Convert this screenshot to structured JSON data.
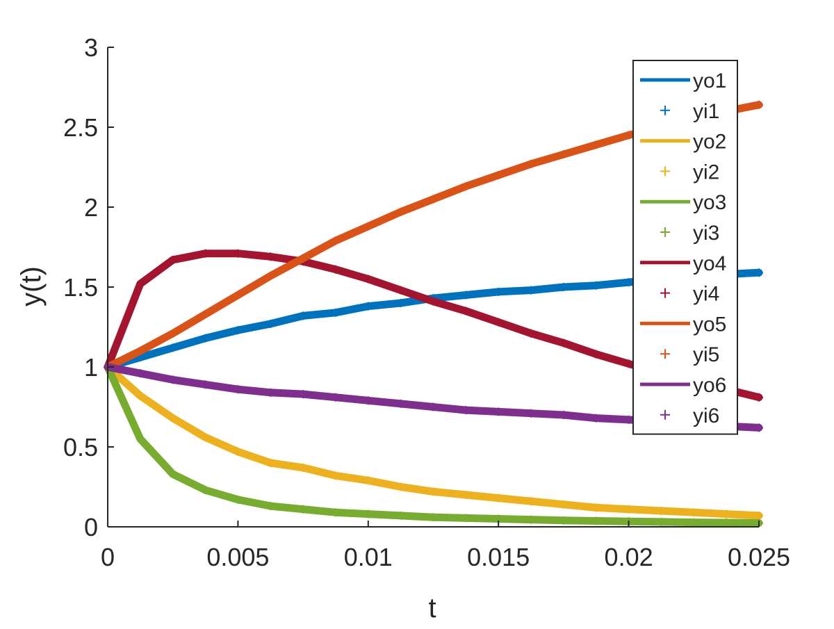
{
  "chart_data": {
    "type": "line",
    "title": "",
    "xlabel": "t",
    "ylabel": "y(t)",
    "xlim": [
      0,
      0.025
    ],
    "ylim": [
      0,
      3
    ],
    "xticks": [
      0,
      0.005,
      0.01,
      0.015,
      0.02,
      0.025
    ],
    "xtick_labels": [
      "0",
      "0.005",
      "0.01",
      "0.015",
      "0.02",
      "0.025"
    ],
    "yticks": [
      0,
      0.5,
      1,
      1.5,
      2,
      2.5,
      3
    ],
    "ytick_labels": [
      "0",
      "0.5",
      "1",
      "1.5",
      "2",
      "2.5",
      "3"
    ],
    "grid": false,
    "legend_position": "top-right",
    "x": [
      0,
      0.00125,
      0.0025,
      0.00375,
      0.005,
      0.00625,
      0.0075,
      0.00875,
      0.01,
      0.01125,
      0.0125,
      0.01375,
      0.015,
      0.01625,
      0.0175,
      0.01875,
      0.02,
      0.02125,
      0.0225,
      0.02375,
      0.025
    ],
    "series": [
      {
        "name": "yo1",
        "style": "line",
        "color": "#0072BD",
        "values": [
          1.0,
          1.06,
          1.12,
          1.18,
          1.23,
          1.27,
          1.32,
          1.34,
          1.38,
          1.4,
          1.43,
          1.45,
          1.47,
          1.48,
          1.5,
          1.51,
          1.53,
          1.55,
          1.56,
          1.58,
          1.59
        ]
      },
      {
        "name": "yi1",
        "style": "marker",
        "color": "#0072BD",
        "values": [
          1.0,
          1.06,
          1.12,
          1.18,
          1.23,
          1.27,
          1.32,
          1.34,
          1.38,
          1.4,
          1.43,
          1.45,
          1.47,
          1.48,
          1.5,
          1.51,
          1.53,
          1.55,
          1.56,
          1.58,
          1.59
        ]
      },
      {
        "name": "yo2",
        "style": "line",
        "color": "#EDB120",
        "values": [
          1.0,
          0.82,
          0.68,
          0.56,
          0.47,
          0.4,
          0.37,
          0.32,
          0.29,
          0.25,
          0.22,
          0.2,
          0.18,
          0.16,
          0.14,
          0.12,
          0.11,
          0.1,
          0.09,
          0.08,
          0.07
        ]
      },
      {
        "name": "yi2",
        "style": "marker",
        "color": "#EDB120",
        "values": [
          1.0,
          0.82,
          0.68,
          0.56,
          0.47,
          0.4,
          0.37,
          0.32,
          0.29,
          0.25,
          0.22,
          0.2,
          0.18,
          0.16,
          0.14,
          0.12,
          0.11,
          0.1,
          0.09,
          0.08,
          0.07
        ]
      },
      {
        "name": "yo3",
        "style": "line",
        "color": "#77AC30",
        "values": [
          1.0,
          0.55,
          0.33,
          0.23,
          0.17,
          0.13,
          0.11,
          0.09,
          0.08,
          0.07,
          0.06,
          0.055,
          0.05,
          0.045,
          0.04,
          0.037,
          0.034,
          0.031,
          0.028,
          0.026,
          0.024
        ]
      },
      {
        "name": "yi3",
        "style": "marker",
        "color": "#77AC30",
        "values": [
          1.0,
          0.55,
          0.33,
          0.23,
          0.17,
          0.13,
          0.11,
          0.09,
          0.08,
          0.07,
          0.06,
          0.055,
          0.05,
          0.045,
          0.04,
          0.037,
          0.034,
          0.031,
          0.028,
          0.026,
          0.024
        ]
      },
      {
        "name": "yo4",
        "style": "line",
        "color": "#A2142F",
        "values": [
          1.0,
          1.52,
          1.67,
          1.71,
          1.71,
          1.69,
          1.66,
          1.61,
          1.55,
          1.48,
          1.41,
          1.35,
          1.28,
          1.21,
          1.15,
          1.08,
          1.02,
          0.96,
          0.91,
          0.86,
          0.81
        ]
      },
      {
        "name": "yi4",
        "style": "marker",
        "color": "#A2142F",
        "values": [
          1.0,
          1.52,
          1.67,
          1.71,
          1.71,
          1.69,
          1.66,
          1.61,
          1.55,
          1.48,
          1.41,
          1.35,
          1.28,
          1.21,
          1.15,
          1.08,
          1.02,
          0.96,
          0.91,
          0.86,
          0.81
        ]
      },
      {
        "name": "yo5",
        "style": "line",
        "color": "#D95319",
        "values": [
          1.0,
          1.1,
          1.21,
          1.33,
          1.45,
          1.57,
          1.68,
          1.79,
          1.88,
          1.97,
          2.05,
          2.13,
          2.2,
          2.27,
          2.33,
          2.39,
          2.45,
          2.5,
          2.55,
          2.6,
          2.64
        ]
      },
      {
        "name": "yi5",
        "style": "marker",
        "color": "#D95319",
        "values": [
          1.0,
          1.1,
          1.21,
          1.33,
          1.45,
          1.57,
          1.68,
          1.79,
          1.88,
          1.97,
          2.05,
          2.13,
          2.2,
          2.27,
          2.33,
          2.39,
          2.45,
          2.5,
          2.55,
          2.6,
          2.64
        ]
      },
      {
        "name": "yo6",
        "style": "line",
        "color": "#7E2F8E",
        "values": [
          1.0,
          0.96,
          0.92,
          0.89,
          0.86,
          0.84,
          0.83,
          0.81,
          0.79,
          0.77,
          0.75,
          0.73,
          0.72,
          0.71,
          0.7,
          0.68,
          0.67,
          0.66,
          0.64,
          0.63,
          0.62
        ]
      },
      {
        "name": "yi6",
        "style": "marker",
        "color": "#7E2F8E",
        "values": [
          1.0,
          0.96,
          0.92,
          0.89,
          0.86,
          0.84,
          0.83,
          0.81,
          0.79,
          0.77,
          0.75,
          0.73,
          0.72,
          0.71,
          0.7,
          0.68,
          0.67,
          0.66,
          0.64,
          0.63,
          0.62
        ]
      }
    ]
  }
}
